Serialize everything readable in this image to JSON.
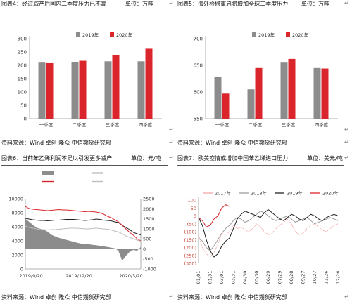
{
  "captions": {
    "fig4": {
      "label": "图表4：经过减产后国内二季度压力已不高",
      "unit": "单位：万吨"
    },
    "fig5": {
      "label": "图表5：海外检修重启将增加全球二季度压力",
      "unit": "单位：万吨"
    },
    "fig6": {
      "label": "图表6：当前苯乙烯利润不足以引发更多减产",
      "unit": "单位：元/吨"
    },
    "fig7": {
      "label": "图表7：欧美疫情或增加中国苯乙烯进口压力",
      "unit": "单位：美元/吨"
    }
  },
  "sources": {
    "s1": "资料来源：Wind  卓创  隆众  中信期货研究部",
    "s2": "资料来源：Wind  卓创  隆众  中信期货研究部",
    "s3": "资料来源：Wind  卓创  隆众  中信期货研究部",
    "s4": "资料来源：Wind  卓创  隆众  中信期货研究部"
  },
  "colors": {
    "grey": "#8c8c8c",
    "red": "#d9252b",
    "dark": "#222222"
  },
  "chart_data": [
    {
      "type": "bar",
      "title": "",
      "categories": [
        "一季度",
        "二季度",
        "三季度",
        "四季度"
      ],
      "series": [
        {
          "name": "2019年",
          "values": [
            210,
            212,
            215,
            215
          ],
          "color": "#8c8c8c"
        },
        {
          "name": "2020年",
          "values": [
            208,
            217,
            238,
            262
          ],
          "color": "#d9252b"
        }
      ],
      "ylim": [
        0,
        300
      ],
      "yticks": [
        0,
        50,
        100,
        150,
        200,
        250,
        300
      ],
      "legend": "top",
      "grid": false
    },
    {
      "type": "bar",
      "title": "",
      "categories": [
        "一季度",
        "二季度",
        "三季度",
        "四季度"
      ],
      "series": [
        {
          "name": "2019年",
          "values": [
            628,
            605,
            655,
            645
          ],
          "color": "#8c8c8c"
        },
        {
          "name": "2020年",
          "values": [
            597,
            645,
            662,
            644
          ],
          "color": "#d9252b"
        }
      ],
      "ylim": [
        550,
        700
      ],
      "yticks": [
        550,
        600,
        650,
        700
      ],
      "legend": "top",
      "grid": false
    },
    {
      "type": "line",
      "title": "",
      "xlabels": [
        "2019/9/20",
        "2019/12/20",
        "2020/3/20"
      ],
      "y_left": {
        "ticks": [
          0,
          2000,
          4000,
          6000,
          8000,
          10000
        ],
        "lim": [
          0,
          10000
        ]
      },
      "y_right": {
        "ticks": [
          -1000,
          -500,
          0,
          500,
          1000,
          1500,
          2000,
          2500
        ],
        "lim": [
          -1000,
          2500
        ]
      },
      "series": [
        {
          "name": "",
          "axis": "right",
          "kind": "area",
          "color": "#8c8c8c",
          "values": [
            1500,
            1350,
            1200,
            1050,
            1000,
            950,
            850,
            700,
            620,
            550,
            500,
            450,
            400,
            350,
            300,
            260,
            250,
            230,
            200,
            180,
            150,
            120,
            100,
            60,
            30,
            -100,
            -600,
            -350,
            -150,
            -50,
            -100,
            100
          ]
        },
        {
          "name": "",
          "axis": "left",
          "kind": "line",
          "color": "#222222",
          "values": [
            7200,
            7100,
            7000,
            6950,
            6900,
            6900,
            6850,
            6900,
            6950,
            6950,
            7000,
            7050,
            7050,
            7050,
            7000,
            6950,
            6900,
            6950,
            7000,
            7100,
            7050,
            6950,
            6900,
            6850,
            6700,
            6600,
            6200,
            5900,
            5600,
            5200,
            5000,
            4850
          ]
        },
        {
          "name": "",
          "axis": "left",
          "kind": "line",
          "color": "#d9252b",
          "values": [
            8900,
            8600,
            8500,
            8450,
            8400,
            8350,
            8300,
            8350,
            8400,
            8450,
            8400,
            8400,
            8350,
            8300,
            8250,
            8200,
            8150,
            8200,
            8150,
            8100,
            8000,
            7800,
            7500,
            7300,
            7000,
            6700,
            6200,
            5700,
            5200,
            4800,
            4300,
            4000
          ]
        },
        {
          "name": "",
          "axis": "left",
          "kind": "line",
          "color": "#bdbdbd",
          "values": [
            6100,
            5900,
            5800,
            5700,
            5600,
            5600,
            5550,
            5600,
            5600,
            5650,
            5700,
            5750,
            5800,
            5800,
            5800,
            5750,
            5700,
            5700,
            5750,
            5800,
            5750,
            5700,
            5650,
            5550,
            5400,
            5250,
            5000,
            4700,
            4500,
            4300,
            4100,
            3950
          ]
        }
      ],
      "legend": "top",
      "grid": false
    },
    {
      "type": "line",
      "title": "",
      "xlabels": [
        "01/01",
        "01/31",
        "03/01",
        "03/31",
        "04/30",
        "05/30",
        "06/29",
        "07/29",
        "08/28",
        "09/27",
        "10/27",
        "11/26",
        "12/26"
      ],
      "ylim": [
        -300,
        100
      ],
      "yticks": [
        100,
        50,
        0,
        -50,
        -100,
        -150,
        -200,
        -250,
        -300
      ],
      "ytick_labels": [
        "100",
        "50",
        "0",
        "(50)",
        "(100)",
        "(150)",
        "(200)",
        "(250)",
        "(300)"
      ],
      "series": [
        {
          "name": "2017年",
          "color": "#f4a7a7",
          "dash": true,
          "values": [
            -120,
            -200,
            -240,
            -260,
            -230,
            -180,
            -110,
            -120,
            -100,
            -60,
            -80,
            -70,
            -90,
            -100,
            -80,
            -50,
            -70,
            -100,
            -120,
            -110,
            -80,
            -60,
            -40,
            -20,
            -50,
            -100,
            -120,
            -110,
            -80,
            -60,
            -50,
            -70,
            -90,
            -100,
            -80,
            -60,
            -50
          ]
        },
        {
          "name": "2018年",
          "color": "#9e9e9e",
          "values": [
            -140,
            -160,
            -200,
            -220,
            -190,
            -150,
            -110,
            -80,
            -60,
            -30,
            -10,
            -20,
            -40,
            -30,
            -10,
            10,
            30,
            20,
            0,
            -20,
            -30,
            -20,
            -10,
            0,
            -20,
            -40,
            -30,
            -20,
            -10,
            -30,
            -50,
            -40,
            -30,
            -20,
            -10,
            -20,
            -30
          ]
        },
        {
          "name": "2019年",
          "color": "#222222",
          "values": [
            -10,
            -60,
            -150,
            -220,
            -260,
            -240,
            -190,
            -160,
            -140,
            -80,
            -20,
            10,
            30,
            20,
            10,
            0,
            -10,
            20,
            40,
            20,
            0,
            -20,
            -30,
            -10,
            10,
            0,
            -20,
            -30,
            -10,
            10,
            0,
            -20,
            -30,
            -10,
            0,
            10,
            0
          ]
        },
        {
          "name": "2020年",
          "color": "#d9252b",
          "values": [
            -10,
            -30,
            -70,
            -60,
            -20,
            0,
            50,
            70,
            60
          ]
        }
      ],
      "legend": "top",
      "grid": false
    }
  ]
}
